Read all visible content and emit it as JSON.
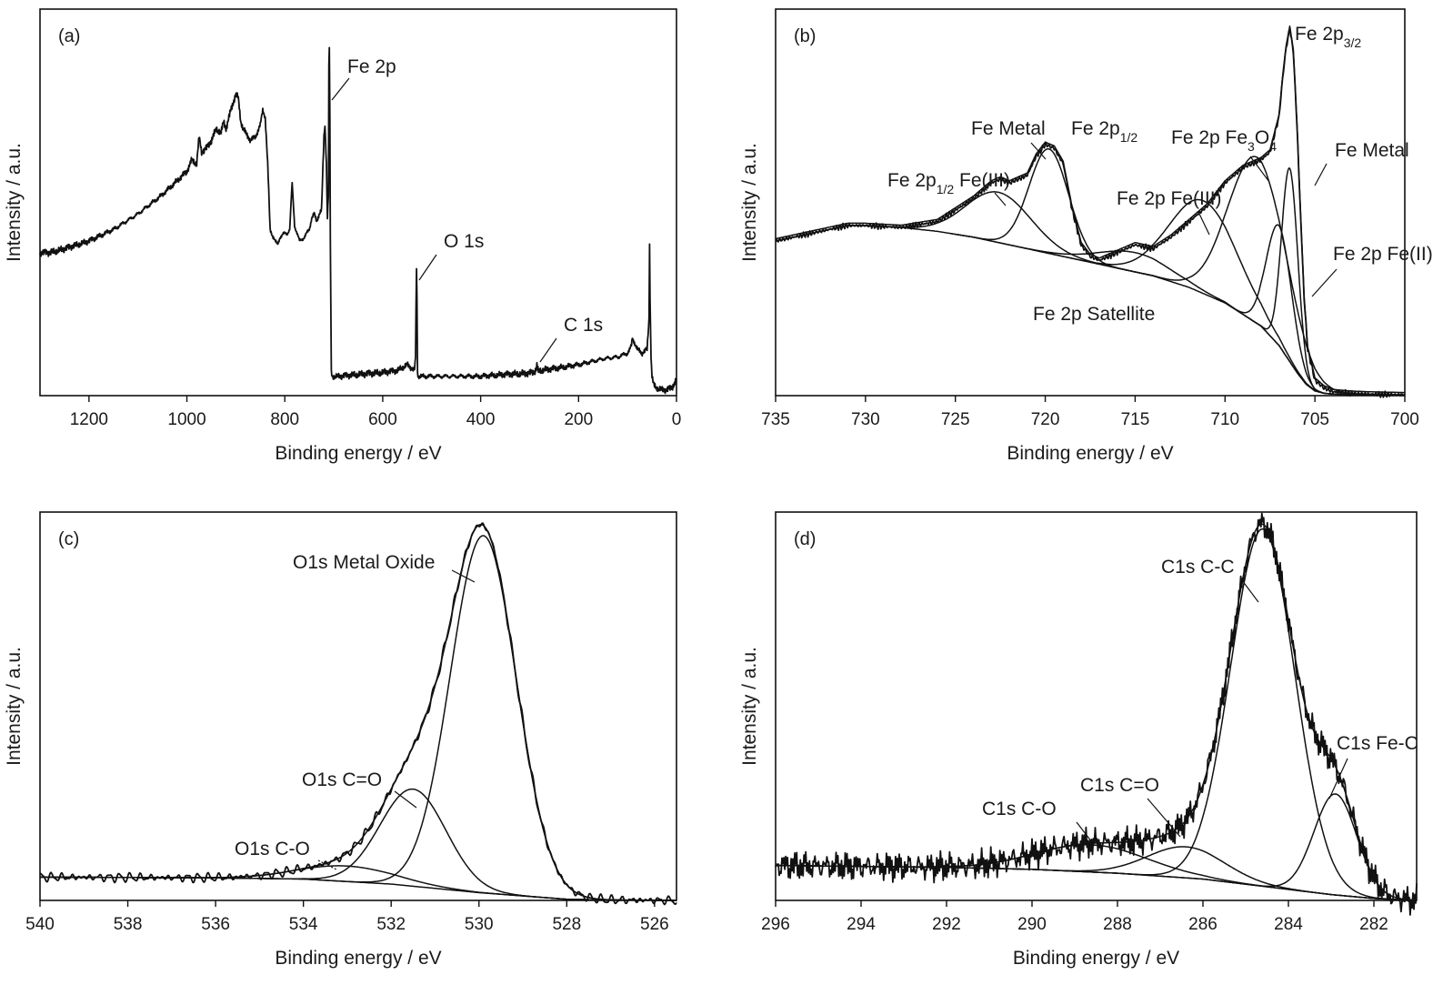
{
  "colors": {
    "line": "#111111",
    "background": "#ffffff"
  },
  "chart_data": [
    {
      "id": "a",
      "type": "line",
      "panel_label": "(a)",
      "xlabel": "Binding energy / eV",
      "ylabel": "Intensity / a.u.",
      "xlim": [
        1300,
        0
      ],
      "xticks": [
        1200,
        1000,
        800,
        600,
        400,
        200,
        0
      ],
      "ylim": [
        0,
        100
      ],
      "y_ticks_shown": false,
      "series": [
        {
          "role": "measured",
          "x": [
            1300,
            1280,
            1250,
            1200,
            1150,
            1100,
            1050,
            1000,
            990,
            980,
            975,
            970,
            960,
            950,
            940,
            930,
            925,
            920,
            910,
            900,
            895,
            890,
            885,
            880,
            870,
            860,
            850,
            845,
            840,
            835,
            830,
            820,
            815,
            810,
            800,
            795,
            790,
            785,
            780,
            775,
            770,
            760,
            750,
            745,
            740,
            735,
            730,
            725,
            720,
            718,
            715,
            713,
            711,
            710,
            709,
            708,
            707,
            706,
            705,
            703,
            700,
            690,
            650,
            600,
            570,
            550,
            540,
            535,
            533,
            531,
            530,
            529,
            527,
            520,
            500,
            450,
            400,
            350,
            300,
            290,
            286,
            285,
            284,
            282,
            280,
            250,
            200,
            150,
            120,
            100,
            95,
            92,
            90,
            80,
            70,
            60,
            56,
            55,
            54,
            52,
            50,
            48,
            45,
            40,
            30,
            20,
            10,
            5,
            0
          ],
          "y": [
            37,
            37,
            38,
            40,
            43,
            47,
            52,
            58,
            61,
            60,
            67,
            63,
            64,
            66,
            69,
            68,
            71,
            69,
            74,
            78,
            77,
            71,
            69,
            68,
            66,
            67,
            70,
            74,
            72,
            60,
            43,
            40,
            39,
            41,
            42,
            42,
            43,
            55,
            44,
            42,
            40,
            41,
            43,
            46,
            47,
            45,
            47,
            48,
            67,
            70,
            60,
            46,
            52,
            85,
            90,
            72,
            40,
            25,
            6,
            5,
            5,
            5,
            5.5,
            6,
            6.5,
            8,
            7,
            6.5,
            10,
            33,
            25,
            6,
            5,
            5,
            5,
            5,
            5,
            5.5,
            5.8,
            6.2,
            7,
            8,
            7,
            6.2,
            6.5,
            7,
            8,
            9.5,
            10,
            11,
            12,
            13,
            15,
            12,
            11,
            12,
            20,
            40,
            25,
            10,
            5,
            3.5,
            2.5,
            2,
            1.5,
            1.5,
            2,
            3,
            4
          ]
        }
      ],
      "annotations": [
        {
          "text": "Fe 2p",
          "x": 707,
          "y": 88
        },
        {
          "text": "O 1s",
          "x": 531,
          "y": 33
        },
        {
          "text": "C 1s",
          "x": 285,
          "y": 8
        }
      ]
    },
    {
      "id": "b",
      "type": "line",
      "panel_label": "(b)",
      "xlabel": "Binding energy / eV",
      "ylabel": "Intensity / a.u.",
      "xlim": [
        735,
        700
      ],
      "xticks": [
        735,
        730,
        725,
        720,
        715,
        710,
        705,
        700
      ],
      "ylim": [
        0,
        100
      ],
      "y_ticks_shown": false,
      "series": [
        {
          "role": "measured + envelope",
          "x": [
            735,
            733,
            731,
            730,
            728,
            726,
            724,
            723,
            722.5,
            722,
            721,
            720.5,
            720,
            719.5,
            719,
            718.5,
            718,
            717.5,
            717,
            716,
            715,
            714,
            713,
            712,
            711,
            710,
            709,
            708,
            707.5,
            707,
            706.8,
            706.6,
            706.4,
            706.2,
            706,
            705.8,
            705.6,
            705.4,
            705,
            704.5,
            704,
            703,
            702,
            701,
            700
          ],
          "y": [
            40,
            42,
            44,
            44,
            43.5,
            45,
            51,
            55,
            56,
            55,
            57,
            62,
            65,
            64,
            60,
            48,
            39,
            36,
            35,
            37,
            39,
            38,
            41,
            45,
            49,
            55,
            59,
            61,
            63,
            72,
            82,
            90,
            95,
            89,
            70,
            47,
            25,
            12,
            4,
            2,
            1,
            0.6,
            0.4,
            0.3,
            0.2
          ]
        },
        {
          "role": "Fe 2p Satellite (background)",
          "x": [
            735,
            733,
            731,
            730,
            728,
            726,
            724,
            722,
            720,
            718,
            716,
            714,
            712,
            710,
            708,
            707,
            706,
            705.5,
            705,
            704.5,
            704,
            703,
            702,
            700
          ],
          "y": [
            40,
            42,
            44,
            44,
            43.5,
            42.5,
            41,
            39,
            37,
            35,
            33,
            31,
            28,
            24,
            18,
            13,
            6,
            3,
            1.2,
            0.6,
            0.4,
            0.3,
            0.2,
            0.2
          ]
        },
        {
          "role": "component",
          "center": 722.6,
          "height": 13,
          "width": 1.8,
          "label": "Fe 2p1/2 Fe(III)"
        },
        {
          "role": "component",
          "center": 719.8,
          "height": 27,
          "width": 1.1,
          "label": "Fe Metal"
        },
        {
          "role": "component",
          "center": 715.0,
          "height": 5,
          "width": 2.0,
          "label": "Fe 2p Fe(III)"
        },
        {
          "role": "component",
          "center": 711.2,
          "height": 24,
          "width": 1.9,
          "label": "Fe 2p Fe(III)"
        },
        {
          "role": "component",
          "center": 708.2,
          "height": 43,
          "width": 1.6,
          "label": "Fe 2p Fe3O4"
        },
        {
          "role": "component",
          "center": 707.0,
          "height": 31,
          "width": 0.7,
          "label": "Fe 2p Fe(II)"
        },
        {
          "role": "component",
          "center": 706.4,
          "height": 50,
          "width": 0.45,
          "label": "Fe Metal"
        }
      ],
      "annotations": [
        {
          "text": "Fe 2p",
          "sub": "3/2",
          "after": ""
        },
        {
          "text": "Fe Metal"
        },
        {
          "text": "Fe 2p",
          "sub": "1/2",
          "after": ""
        },
        {
          "text": "Fe 2p Fe",
          "sub": "3",
          "after": "O",
          "sub2": "4"
        },
        {
          "text": "Fe Metal"
        },
        {
          "text": "Fe 2p",
          "sub": "1/2",
          "after": " Fe(III)"
        },
        {
          "text": "Fe 2p Fe(III)"
        },
        {
          "text": "Fe 2p Fe(II)"
        },
        {
          "text": "Fe 2p Satellite"
        }
      ]
    },
    {
      "id": "c",
      "type": "line",
      "panel_label": "(c)",
      "xlabel": "Binding energy / eV",
      "ylabel": "Intensity / a.u.",
      "xlim": [
        540,
        525.5
      ],
      "xticks": [
        540,
        538,
        536,
        534,
        532,
        530,
        528,
        526
      ],
      "ylim": [
        0,
        100
      ],
      "y_ticks_shown": false,
      "series": [
        {
          "role": "baseline",
          "x": [
            540,
            536,
            534,
            532,
            530,
            528,
            527,
            525.5
          ],
          "y": [
            6,
            5.8,
            5.5,
            4.2,
            2,
            0.3,
            0.1,
            0
          ]
        },
        {
          "role": "component",
          "center": 533.0,
          "height": 4,
          "width": 1.1,
          "label": "O1s C-O"
        },
        {
          "role": "component",
          "center": 531.5,
          "height": 25,
          "width": 0.75,
          "label": "O1s C=O"
        },
        {
          "role": "component",
          "center": 529.9,
          "height": 92,
          "width": 0.75,
          "label": "O1s Metal Oxide"
        }
      ],
      "annotations": [
        {
          "text": "O1s Metal Oxide"
        },
        {
          "text": "O1s C=O"
        },
        {
          "text": "O1s C-O"
        }
      ]
    },
    {
      "id": "d",
      "type": "line",
      "panel_label": "(d)",
      "xlabel": "Binding energy / eV",
      "ylabel": "Intensity / a.u.",
      "xlim": [
        296,
        281
      ],
      "xticks": [
        296,
        294,
        292,
        290,
        288,
        286,
        284,
        282
      ],
      "ylim": [
        0,
        100
      ],
      "y_ticks_shown": false,
      "series": [
        {
          "role": "baseline",
          "x": [
            296,
            292,
            290,
            288,
            286,
            284.5,
            283,
            282,
            281
          ],
          "y": [
            9,
            8.5,
            8,
            7,
            5.5,
            3.5,
            1.5,
            0.5,
            0
          ]
        },
        {
          "role": "component",
          "center": 288.6,
          "height": 7,
          "width": 1.3,
          "label": "C1s C-O"
        },
        {
          "role": "component",
          "center": 286.4,
          "height": 8,
          "width": 0.9,
          "label": "C1s C=O"
        },
        {
          "role": "component",
          "center": 284.6,
          "height": 92,
          "width": 0.75,
          "label": "C1s C-C"
        },
        {
          "role": "component",
          "center": 282.9,
          "height": 26,
          "width": 0.5,
          "label": "C1s Fe-C"
        }
      ],
      "annotations": [
        {
          "text": "C1s C-C"
        },
        {
          "text": "C1s Fe-C"
        },
        {
          "text": "C1s C=O"
        },
        {
          "text": "C1s C-O"
        }
      ]
    }
  ]
}
